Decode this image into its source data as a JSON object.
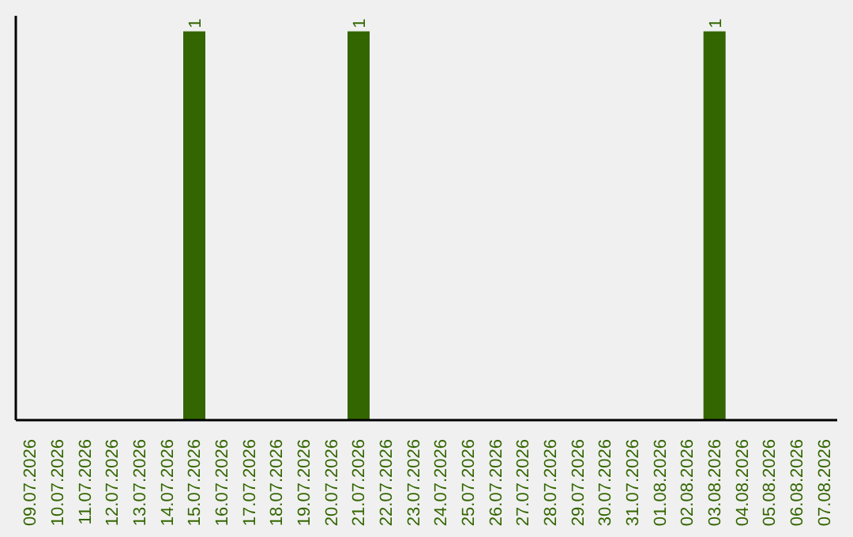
{
  "chart_data": {
    "type": "bar",
    "categories": [
      "09.07.2026",
      "10.07.2026",
      "11.07.2026",
      "12.07.2026",
      "13.07.2026",
      "14.07.2026",
      "15.07.2026",
      "16.07.2026",
      "17.07.2026",
      "18.07.2026",
      "19.07.2026",
      "20.07.2026",
      "21.07.2026",
      "22.07.2026",
      "23.07.2026",
      "24.07.2026",
      "25.07.2026",
      "26.07.2026",
      "27.07.2026",
      "28.07.2026",
      "29.07.2026",
      "30.07.2026",
      "31.07.2026",
      "01.08.2026",
      "02.08.2026",
      "03.08.2026",
      "04.08.2026",
      "05.08.2026",
      "06.08.2026",
      "07.08.2026"
    ],
    "values": [
      0,
      0,
      0,
      0,
      0,
      0,
      1,
      0,
      0,
      0,
      0,
      0,
      1,
      0,
      0,
      0,
      0,
      0,
      0,
      0,
      0,
      0,
      0,
      0,
      0,
      1,
      0,
      0,
      0,
      0
    ],
    "value_labels": [
      null,
      null,
      null,
      null,
      null,
      null,
      "1",
      null,
      null,
      null,
      null,
      null,
      "1",
      null,
      null,
      null,
      null,
      null,
      null,
      null,
      null,
      null,
      null,
      null,
      null,
      "1",
      null,
      null,
      null,
      null
    ],
    "color": "#336600"
  }
}
